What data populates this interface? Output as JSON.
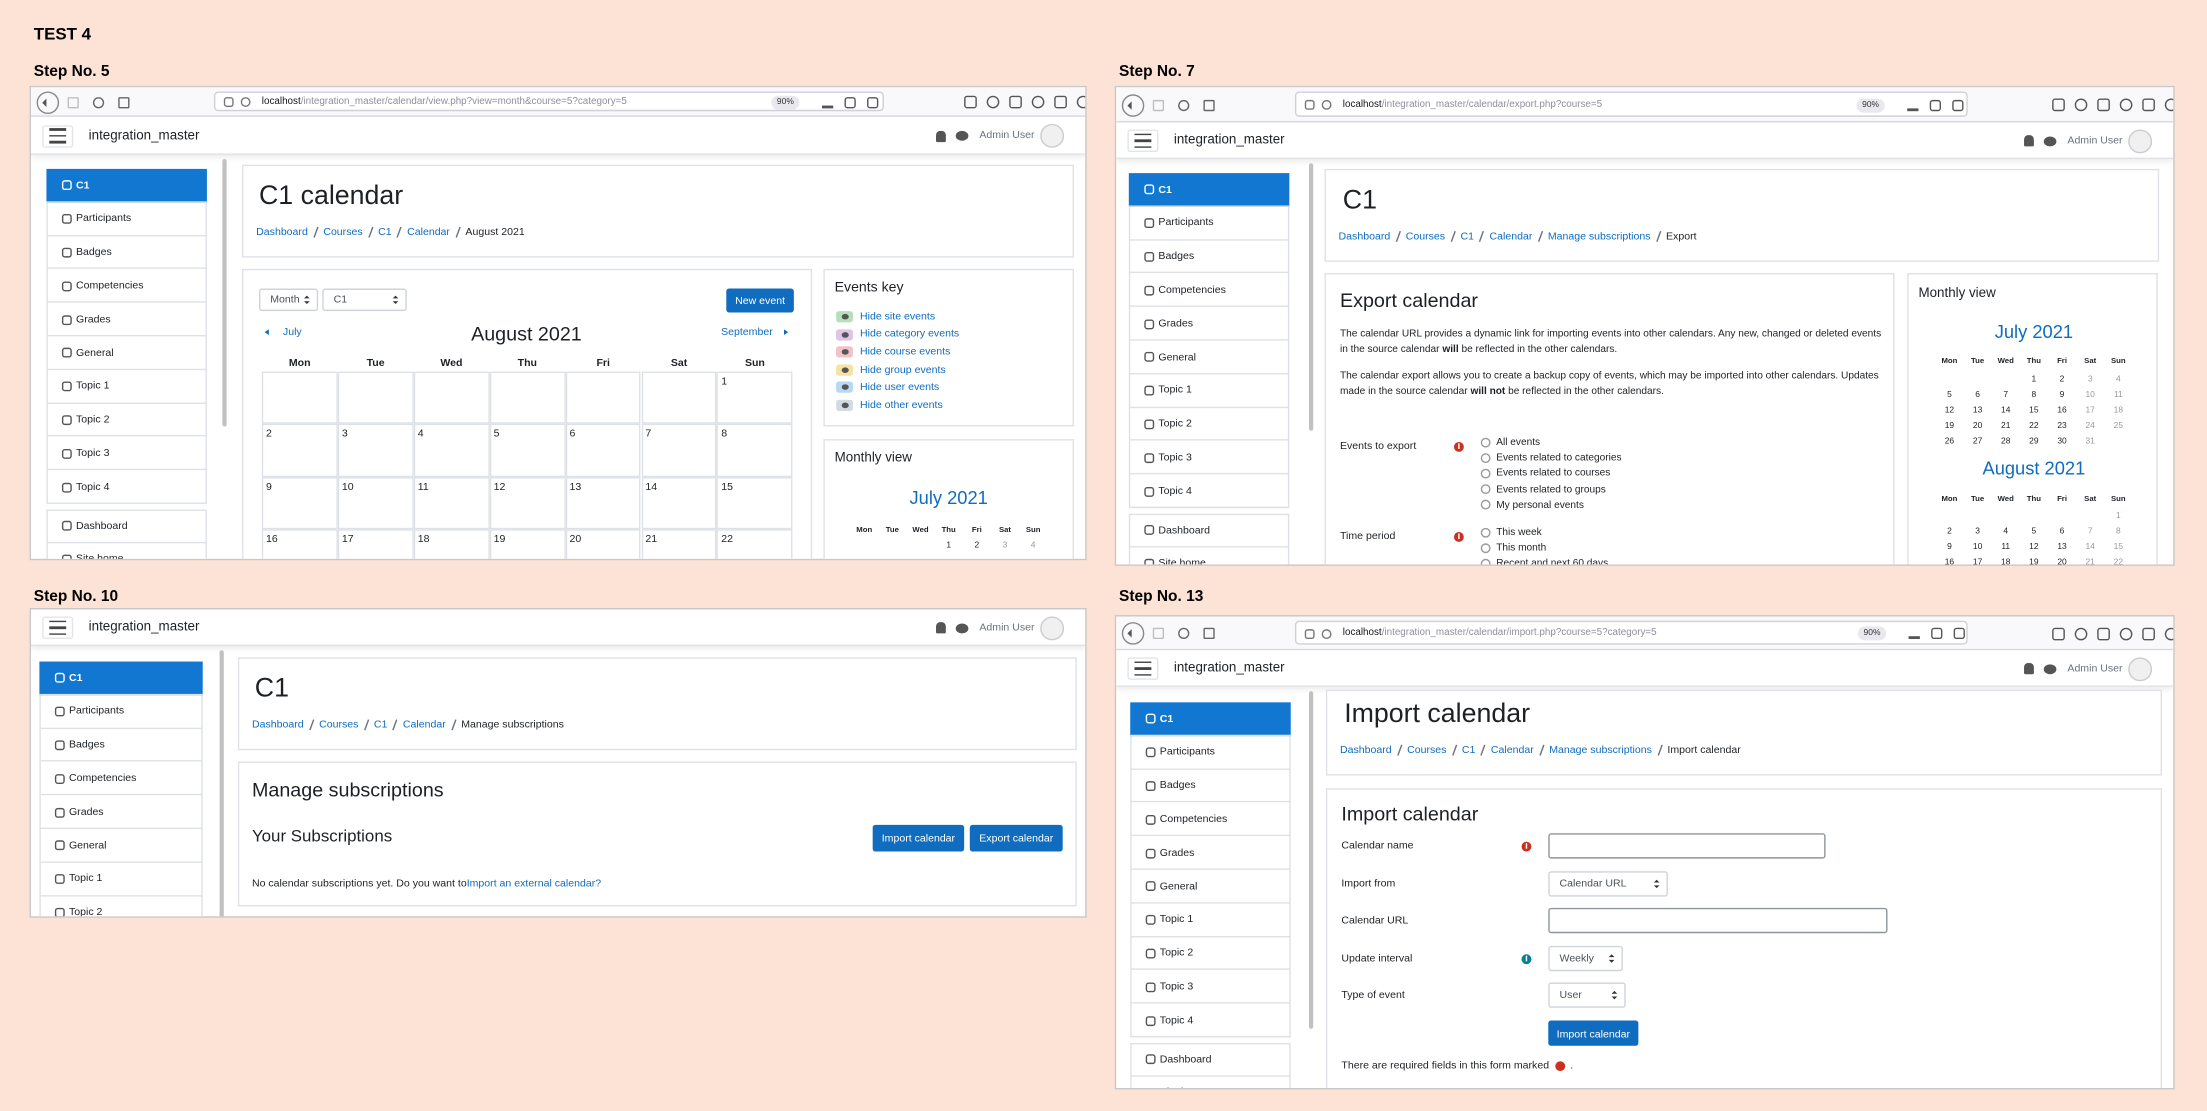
{
  "title": "TEST 4",
  "panels": [
    {
      "step": "Step No. 5",
      "browser": {
        "host": "localhost",
        "path": "/integration_master/calendar/view.php?view=month&course=5?category=5",
        "zoom": "90%"
      },
      "navbar": {
        "site": "integration_master",
        "user": "Admin User"
      },
      "nav": [
        "C1",
        "Participants",
        "Badges",
        "Competencies",
        "Grades",
        "General",
        "Topic 1",
        "Topic 2",
        "Topic 3",
        "Topic 4"
      ],
      "nav2": [
        "Dashboard",
        "Site home"
      ],
      "header": {
        "title": "C1 calendar",
        "breadcrumb": [
          "Dashboard",
          "Courses",
          "C1",
          "Calendar",
          "August 2021"
        ]
      },
      "calendar": {
        "view_select": "Month",
        "course_select": "C1",
        "new_event": "New event",
        "prev": "July",
        "month": "August 2021",
        "next": "September",
        "weekdays": [
          "Mon",
          "Tue",
          "Wed",
          "Thu",
          "Fri",
          "Sat",
          "Sun"
        ],
        "weeks": [
          [
            null,
            null,
            null,
            null,
            null,
            null,
            1
          ],
          [
            2,
            3,
            4,
            5,
            6,
            7,
            8
          ],
          [
            9,
            10,
            11,
            12,
            13,
            14,
            15
          ],
          [
            16,
            17,
            18,
            19,
            20,
            21,
            22
          ]
        ]
      },
      "events_key": {
        "title": "Events key",
        "items": [
          "Hide site events",
          "Hide category events",
          "Hide course events",
          "Hide group events",
          "Hide user events",
          "Hide other events"
        ]
      },
      "monthly_view": {
        "title": "Monthly view",
        "months": [
          {
            "name": "July 2021",
            "weekdays": [
              "Mon",
              "Tue",
              "Wed",
              "Thu",
              "Fri",
              "Sat",
              "Sun"
            ],
            "weeks": [
              [
                null,
                null,
                null,
                1,
                2,
                3,
                4
              ]
            ]
          }
        ]
      }
    },
    {
      "step": "Step No. 7",
      "browser": {
        "host": "localhost",
        "path": "/integration_master/calendar/export.php?course=5",
        "zoom": "90%"
      },
      "navbar": {
        "site": "integration_master",
        "user": "Admin User"
      },
      "nav": [
        "C1",
        "Participants",
        "Badges",
        "Competencies",
        "Grades",
        "General",
        "Topic 1",
        "Topic 2",
        "Topic 3",
        "Topic 4"
      ],
      "nav2": [
        "Dashboard",
        "Site home"
      ],
      "header": {
        "title": "C1",
        "breadcrumb": [
          "Dashboard",
          "Courses",
          "C1",
          "Calendar",
          "Manage subscriptions",
          "Export"
        ]
      },
      "export": {
        "title": "Export calendar",
        "paragraphs": [
          [
            "The calendar URL provides a dynamic link for importing events into other calendars. Any new, changed or deleted events in the source calendar ",
            "will",
            " be reflected in the other calendars."
          ],
          [
            "The calendar export allows you to create a backup copy of events, which may be imported into other calendars. Updates made in the source calendar ",
            "will not",
            " be reflected in the other calendars."
          ]
        ],
        "fields": [
          {
            "label": "Events to export",
            "options": [
              "All events",
              "Events related to categories",
              "Events related to courses",
              "Events related to groups",
              "My personal events"
            ]
          },
          {
            "label": "Time period",
            "options": [
              "This week",
              "This month",
              "Recent and next 60 days"
            ]
          }
        ]
      },
      "monthly_view": {
        "title": "Monthly view",
        "months": [
          {
            "name": "July 2021",
            "weekdays": [
              "Mon",
              "Tue",
              "Wed",
              "Thu",
              "Fri",
              "Sat",
              "Sun"
            ],
            "weeks": [
              [
                null,
                null,
                null,
                1,
                2,
                3,
                4
              ],
              [
                5,
                6,
                7,
                8,
                9,
                10,
                11
              ],
              [
                12,
                13,
                14,
                15,
                16,
                17,
                18
              ],
              [
                19,
                20,
                21,
                22,
                23,
                24,
                25
              ],
              [
                26,
                27,
                28,
                29,
                30,
                31,
                null
              ]
            ]
          },
          {
            "name": "August 2021",
            "weekdays": [
              "Mon",
              "Tue",
              "Wed",
              "Thu",
              "Fri",
              "Sat",
              "Sun"
            ],
            "weeks": [
              [
                null,
                null,
                null,
                null,
                null,
                null,
                1
              ],
              [
                2,
                3,
                4,
                5,
                6,
                7,
                8
              ],
              [
                9,
                10,
                11,
                12,
                13,
                14,
                15
              ],
              [
                16,
                17,
                18,
                19,
                20,
                21,
                22
              ]
            ]
          }
        ]
      }
    },
    {
      "step": "Step No. 10",
      "navbar": {
        "site": "integration_master",
        "user": "Admin User"
      },
      "nav": [
        "C1",
        "Participants",
        "Badges",
        "Competencies",
        "Grades",
        "General",
        "Topic 1",
        "Topic 2"
      ],
      "header": {
        "title": "C1",
        "breadcrumb": [
          "Dashboard",
          "Courses",
          "C1",
          "Calendar",
          "Manage subscriptions"
        ]
      },
      "subscriptions": {
        "title": "Manage subscriptions",
        "subtitle": "Your Subscriptions",
        "buttons": [
          "Import calendar",
          "Export calendar"
        ],
        "empty_text": "No calendar subscriptions yet. Do you want to ",
        "link": "Import an external calendar?"
      }
    },
    {
      "step": "Step No. 13",
      "browser": {
        "host": "localhost",
        "path": "/integration_master/calendar/import.php?course=5?category=5",
        "zoom": "90%"
      },
      "navbar": {
        "site": "integration_master",
        "user": "Admin User"
      },
      "nav": [
        "C1",
        "Participants",
        "Badges",
        "Competencies",
        "Grades",
        "General",
        "Topic 1",
        "Topic 2",
        "Topic 3",
        "Topic 4"
      ],
      "nav2": [
        "Dashboard",
        "Site home"
      ],
      "header": {
        "title": "Import calendar",
        "breadcrumb": [
          "Dashboard",
          "Courses",
          "C1",
          "Calendar",
          "Manage subscriptions",
          "Import calendar"
        ]
      },
      "form": {
        "title": "Import calendar",
        "fields": [
          {
            "label": "Calendar name",
            "type": "text",
            "required": true
          },
          {
            "label": "Import from",
            "type": "select",
            "value": "Calendar URL"
          },
          {
            "label": "Calendar URL",
            "type": "text"
          },
          {
            "label": "Update interval",
            "type": "select",
            "value": "Weekly",
            "help": true
          },
          {
            "label": "Type of event",
            "type": "select",
            "value": "User"
          }
        ],
        "submit": "Import calendar",
        "note": "There are required fields in this form marked",
        "note_end": "."
      }
    }
  ]
}
